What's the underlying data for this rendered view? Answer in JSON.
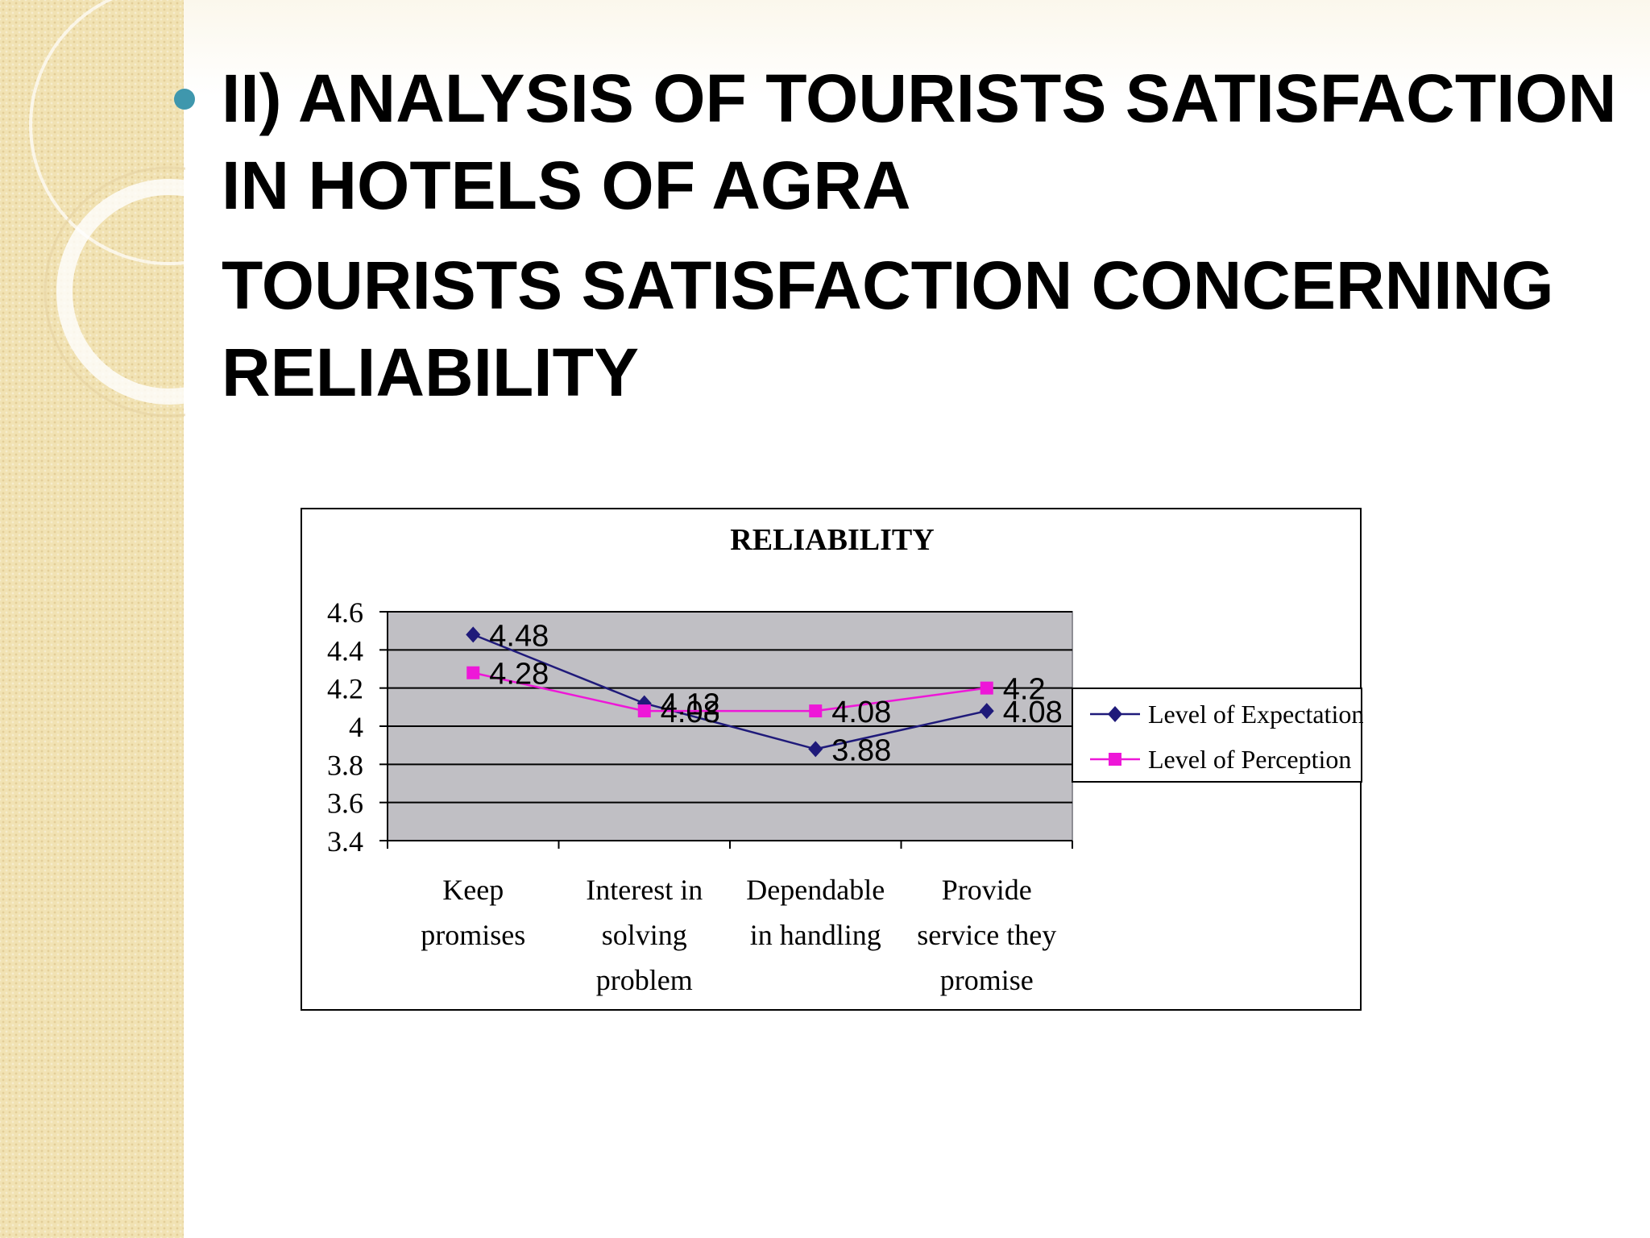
{
  "slide": {
    "heading_line1": "II) ANALYSIS OF TOURISTS SATISFACTION IN HOTELS OF AGRA",
    "heading_line2": "TOURISTS SATISFACTION CONCERNING RELIABILITY",
    "bullet_color": "#3f97ad"
  },
  "chart_data": {
    "type": "line",
    "title": "RELIABILITY",
    "xlabel": "",
    "ylabel": "",
    "categories": [
      [
        "Keep",
        "promises"
      ],
      [
        "Interest in",
        "solving",
        "problem"
      ],
      [
        "Dependable",
        "in handling"
      ],
      [
        "Provide",
        "service they",
        "promise"
      ]
    ],
    "ylim": [
      3.4,
      4.6
    ],
    "yticks": [
      "4.6",
      "4.4",
      "4.2",
      "4",
      "3.8",
      "3.6",
      "3.4"
    ],
    "grid": true,
    "legend_position": "right",
    "plot_background": "#c0bfc4",
    "series": [
      {
        "name": "Level of Expectation",
        "values": [
          4.48,
          4.12,
          3.88,
          4.08
        ],
        "labels": [
          "4.48",
          "4.12",
          "3.88",
          "4.08"
        ],
        "color": "#1f1a7a",
        "marker": "diamond"
      },
      {
        "name": "Level of Perception",
        "values": [
          4.28,
          4.08,
          4.08,
          4.2
        ],
        "labels": [
          "4.28",
          "4.08",
          "4.08",
          "4.2"
        ],
        "color": "#ee17d8",
        "marker": "square"
      }
    ]
  }
}
